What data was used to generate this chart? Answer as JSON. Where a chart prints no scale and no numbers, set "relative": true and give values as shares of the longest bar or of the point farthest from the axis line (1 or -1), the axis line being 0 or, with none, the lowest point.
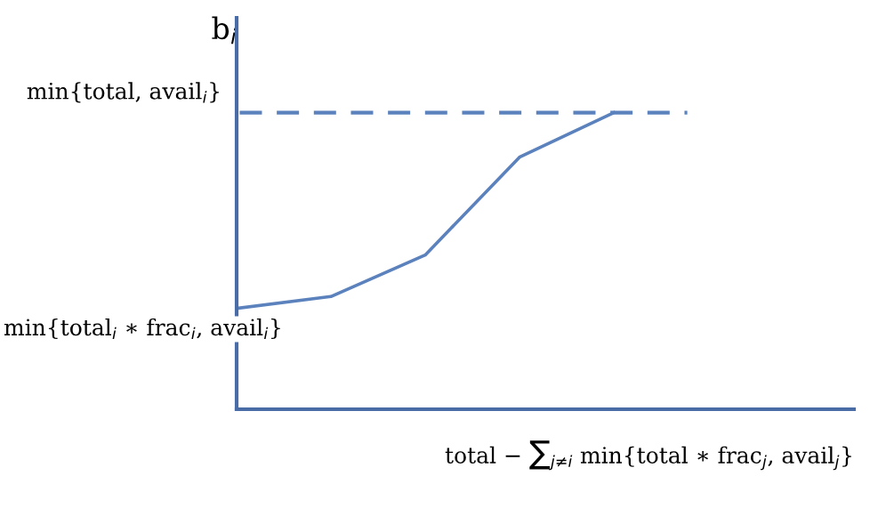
{
  "chart_data": {
    "type": "line",
    "relative": true,
    "ylabel": "b$_{i}$",
    "xlabel": "total − ∑$_{j≠i}$ min{total ∗ frac$_{j}$, avail$_{j}$}",
    "categories": [
      null,
      null,
      null,
      null,
      null
    ],
    "series": [
      {
        "color": "#5b82bd",
        "values": [
          0.34,
          0.38,
          0.52,
          0.85,
          1
        ]
      }
    ],
    "ref_lines": [
      {
        "axis": "y",
        "value": 1,
        "label": "min{total, avail$_{i}$}",
        "color": "#5b82bd",
        "line_style": "dashed"
      }
    ],
    "annotations": [
      "min{total$_{i}$ ∗ frac$_{i}$, avail$_{i}$}"
    ],
    "legend": false
  }
}
